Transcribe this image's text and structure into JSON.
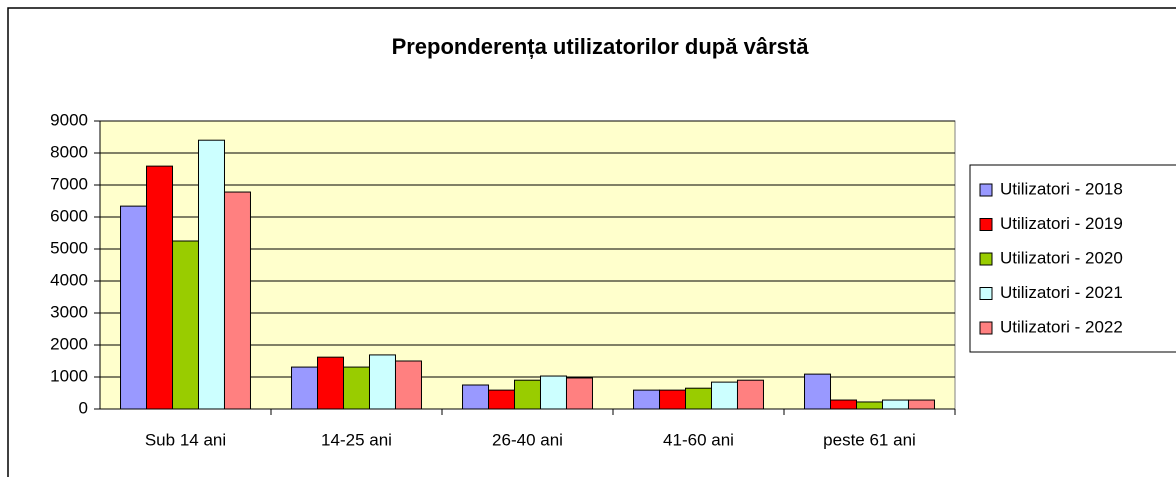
{
  "chart_data": {
    "type": "bar",
    "title": "Preponderența utilizatorilor după vârstă",
    "categories": [
      "Sub 14 ani",
      "14-25 ani",
      "26-40 ani",
      "41-60 ani",
      "peste 61 ani"
    ],
    "series": [
      {
        "name": "Utilizatori - 2018",
        "color": "#9999ff",
        "values": [
          6340,
          1310,
          750,
          590,
          1090
        ]
      },
      {
        "name": "Utilizatori - 2019",
        "color": "#ff0000",
        "values": [
          7590,
          1620,
          590,
          590,
          280
        ]
      },
      {
        "name": "Utilizatori - 2020",
        "color": "#99cc00",
        "values": [
          5250,
          1310,
          900,
          650,
          220
        ]
      },
      {
        "name": "Utilizatori - 2021",
        "color": "#ccffff",
        "values": [
          8400,
          1690,
          1030,
          840,
          280
        ]
      },
      {
        "name": "Utilizatori - 2022",
        "color": "#ff8080",
        "values": [
          6780,
          1500,
          970,
          900,
          280
        ]
      }
    ],
    "ylim": [
      0,
      9000
    ],
    "yticks": [
      0,
      1000,
      2000,
      3000,
      4000,
      5000,
      6000,
      7000,
      8000,
      9000
    ],
    "grid": true,
    "legend": "right"
  }
}
